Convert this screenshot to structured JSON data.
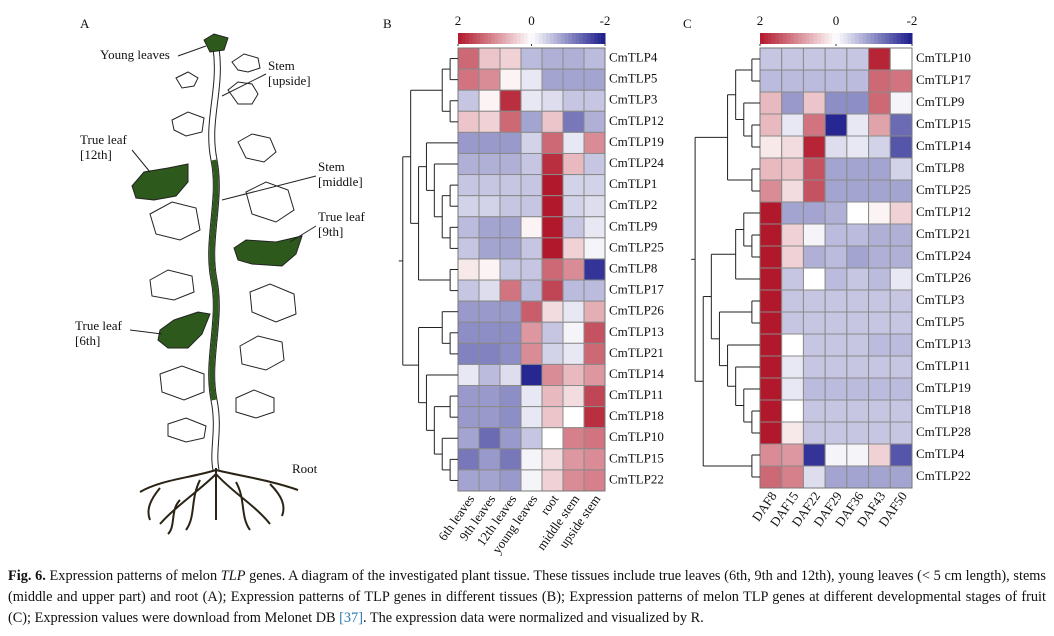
{
  "panel_a": {
    "label": "A",
    "annotations": [
      {
        "lines": [
          "Young leaves"
        ]
      },
      {
        "lines": [
          "Stem",
          "[upside]"
        ]
      },
      {
        "lines": [
          "True leaf",
          "[12th]"
        ]
      },
      {
        "lines": [
          "Stem",
          "[middle]"
        ]
      },
      {
        "lines": [
          "True leaf",
          "[9th]"
        ]
      },
      {
        "lines": [
          "True leaf",
          "[6th]"
        ]
      },
      {
        "lines": [
          "Root"
        ]
      }
    ]
  },
  "panel_b": {
    "label": "B",
    "scale_lim": [
      2,
      -2
    ],
    "scale_ticks": [
      2,
      0,
      -2
    ],
    "colors": {
      "high": "#b2182b",
      "mid": "#ffffff",
      "low": "#1c1c8c"
    },
    "columns": [
      "6th leaves",
      "9th leaves",
      "12th leaves",
      "young leaves",
      "root",
      "middle stem",
      "upside stem"
    ],
    "rows": [
      "CmTLP4",
      "CmTLP5",
      "CmTLP3",
      "CmTLP12",
      "CmTLP19",
      "CmTLP24",
      "CmTLP1",
      "CmTLP2",
      "CmTLP9",
      "CmTLP25",
      "CmTLP8",
      "CmTLP17",
      "CmTLP26",
      "CmTLP13",
      "CmTLP21",
      "CmTLP14",
      "CmTLP11",
      "CmTLP18",
      "CmTLP10",
      "CmTLP15",
      "CmTLP22"
    ],
    "values": [
      [
        1.3,
        0.5,
        0.4,
        -0.6,
        -0.7,
        -0.7,
        -0.6
      ],
      [
        1.2,
        1.0,
        0.1,
        -0.2,
        -0.8,
        -0.8,
        -0.8
      ],
      [
        -0.5,
        0.1,
        1.8,
        -0.2,
        -0.3,
        -0.5,
        -0.5
      ],
      [
        0.5,
        0.4,
        1.3,
        -0.8,
        0.5,
        -1.2,
        -0.7
      ],
      [
        -0.9,
        -0.9,
        -0.9,
        -0.4,
        1.3,
        -0.2,
        1.0
      ],
      [
        -0.7,
        -0.7,
        -0.7,
        -0.5,
        1.8,
        0.6,
        -0.5
      ],
      [
        -0.5,
        -0.5,
        -0.5,
        -0.5,
        2.0,
        -0.4,
        -0.4
      ],
      [
        -0.4,
        -0.4,
        -0.5,
        -0.5,
        2.0,
        -0.4,
        -0.3
      ],
      [
        -0.6,
        -0.8,
        -0.8,
        0.1,
        2.0,
        -0.5,
        -0.2
      ],
      [
        -0.5,
        -0.8,
        -0.8,
        -0.5,
        2.0,
        0.4,
        -0.1
      ],
      [
        0.2,
        0.1,
        -0.5,
        -0.5,
        1.3,
        1.0,
        -1.8
      ],
      [
        -0.5,
        -0.3,
        1.2,
        -0.6,
        1.6,
        -0.6,
        -0.6
      ],
      [
        -0.9,
        -0.9,
        -0.9,
        1.4,
        0.3,
        -0.2,
        0.7
      ],
      [
        -1.0,
        -1.0,
        -1.0,
        0.9,
        -0.5,
        -0.1,
        1.5
      ],
      [
        -1.1,
        -1.1,
        -1.0,
        1.0,
        -0.4,
        -0.2,
        1.3
      ],
      [
        -0.2,
        -0.6,
        -0.3,
        -1.9,
        1.0,
        0.6,
        0.9
      ],
      [
        -0.9,
        -0.9,
        -1.0,
        -0.2,
        0.6,
        0.3,
        1.6
      ],
      [
        -0.9,
        -0.9,
        -1.0,
        -0.2,
        0.5,
        0.0,
        1.8
      ],
      [
        -0.8,
        -1.3,
        -0.9,
        -0.5,
        0.0,
        1.1,
        1.2
      ],
      [
        -1.2,
        -0.9,
        -1.2,
        -0.1,
        0.3,
        0.9,
        1.0
      ],
      [
        -0.8,
        -0.8,
        -0.9,
        -0.1,
        0.4,
        1.0,
        1.1
      ]
    ]
  },
  "panel_c": {
    "label": "C",
    "scale_lim": [
      2,
      -2
    ],
    "scale_ticks": [
      2,
      0,
      -2
    ],
    "colors": {
      "high": "#b2182b",
      "mid": "#ffffff",
      "low": "#1c1c8c"
    },
    "columns": [
      "DAF8",
      "DAF15",
      "DAF22",
      "DAF29",
      "DAF36",
      "DAF43",
      "DAF50"
    ],
    "rows": [
      "CmTLP10",
      "CmTLP17",
      "CmTLP9",
      "CmTLP15",
      "CmTLP14",
      "CmTLP8",
      "CmTLP25",
      "CmTLP12",
      "CmTLP21",
      "CmTLP24",
      "CmTLP26",
      "CmTLP3",
      "CmTLP5",
      "CmTLP13",
      "CmTLP11",
      "CmTLP19",
      "CmTLP18",
      "CmTLP28",
      "CmTLP4",
      "CmTLP22"
    ],
    "values": [
      [
        -0.5,
        -0.5,
        -0.5,
        -0.5,
        -0.5,
        1.9,
        0.0
      ],
      [
        -0.6,
        -0.6,
        -0.6,
        -0.6,
        -0.6,
        1.3,
        1.2
      ],
      [
        0.6,
        -0.9,
        0.5,
        -1.0,
        -1.0,
        1.3,
        -0.1
      ],
      [
        0.6,
        -0.2,
        1.2,
        -1.9,
        -0.2,
        0.8,
        -1.3
      ],
      [
        0.2,
        0.3,
        1.9,
        -0.3,
        -0.2,
        -0.4,
        -1.5
      ],
      [
        0.6,
        0.5,
        1.5,
        -0.8,
        -0.8,
        -0.8,
        -0.4
      ],
      [
        1.0,
        0.3,
        1.5,
        -0.8,
        -0.8,
        -0.8,
        -0.8
      ],
      [
        2.0,
        -0.8,
        -0.8,
        -0.7,
        0.0,
        0.1,
        0.4
      ],
      [
        2.0,
        0.4,
        -0.1,
        -0.6,
        -0.6,
        -0.7,
        -0.7
      ],
      [
        2.0,
        0.4,
        -0.7,
        -0.6,
        -0.8,
        -0.7,
        -0.7
      ],
      [
        2.0,
        -0.5,
        0.0,
        -0.6,
        -0.5,
        -0.6,
        -0.2
      ],
      [
        2.0,
        -0.5,
        -0.5,
        -0.5,
        -0.5,
        -0.5,
        -0.5
      ],
      [
        2.0,
        -0.5,
        -0.5,
        -0.5,
        -0.5,
        -0.5,
        -0.5
      ],
      [
        2.0,
        0.0,
        -0.5,
        -0.5,
        -0.5,
        -0.6,
        -0.6
      ],
      [
        2.0,
        -0.2,
        -0.5,
        -0.5,
        -0.5,
        -0.5,
        -0.5
      ],
      [
        2.0,
        -0.2,
        -0.6,
        -0.6,
        -0.6,
        -0.6,
        -0.6
      ],
      [
        2.0,
        0.0,
        -0.5,
        -0.5,
        -0.5,
        -0.5,
        -0.5
      ],
      [
        2.0,
        0.2,
        -0.5,
        -0.5,
        -0.5,
        -0.5,
        -0.5
      ],
      [
        1.0,
        0.9,
        -1.8,
        -0.1,
        -0.1,
        0.4,
        -1.5
      ],
      [
        1.3,
        1.1,
        -0.3,
        -0.8,
        -0.8,
        -0.8,
        -0.8
      ]
    ]
  },
  "caption": {
    "label": "Fig. 6.",
    "text_1": " Expression patterns of melon ",
    "italic": "TLP",
    "text_2": " genes. A diagram of the investigated plant tissue. These tissues include true leaves (6th, 9th and 12th), young leaves (< 5 cm length), stems (middle and upper part) and root (A); Expression patterns of TLP genes in different tissues (B); Expression patterns of melon TLP genes at different developmental stages of fruit (C); Expression values were download from Melonet DB ",
    "ref": "[37]",
    "text_3": ". The expression data were normalized and visualized by R."
  }
}
